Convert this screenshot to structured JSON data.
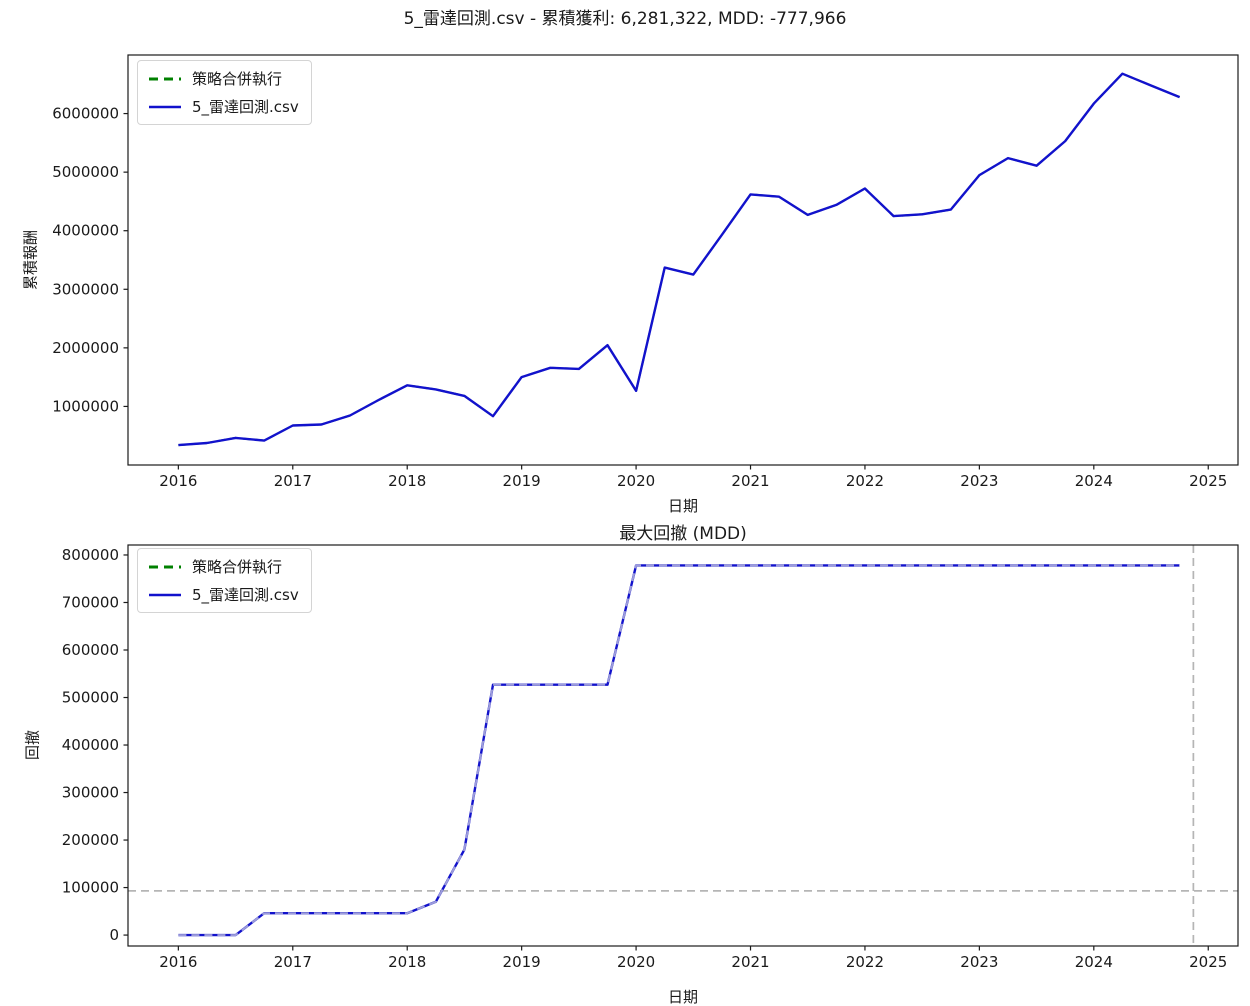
{
  "figure": {
    "background": "#ffffff",
    "suptitle": "5_雷達回測.csv - 累積獲利: 6,281,322, MDD: -777,966",
    "cumulative_profit": "6,281,322",
    "mdd": "-777,966"
  },
  "legend": {
    "items": [
      {
        "label": "策略合併執行",
        "color": "#008000",
        "style": "dashed"
      },
      {
        "label": "5_雷達回測.csv",
        "color": "#1212cc",
        "style": "solid"
      }
    ]
  },
  "chart_data": [
    {
      "type": "line",
      "title": "5_雷達回測.csv - 累積獲利: 6,281,322, MDD: -777,966",
      "xlabel": "日期",
      "ylabel": "累積報酬",
      "grid": false,
      "legend_position": "upper-left",
      "xlim": [
        2015.56,
        2025.26
      ],
      "ylim": [
        0,
        7000000
      ],
      "xticks": [
        2016,
        2017,
        2018,
        2019,
        2020,
        2021,
        2022,
        2023,
        2024,
        2025
      ],
      "yticks": [
        1000000,
        2000000,
        3000000,
        4000000,
        5000000,
        6000000
      ],
      "x": [
        2016.0,
        2016.25,
        2016.5,
        2016.75,
        2017.0,
        2017.25,
        2017.5,
        2017.75,
        2018.0,
        2018.25,
        2018.5,
        2018.75,
        2019.0,
        2019.25,
        2019.5,
        2019.75,
        2020.0,
        2020.25,
        2020.5,
        2020.75,
        2021.0,
        2021.25,
        2021.5,
        2021.75,
        2022.0,
        2022.25,
        2022.5,
        2022.75,
        2023.0,
        2023.25,
        2023.5,
        2023.75,
        2024.0,
        2024.25,
        2024.5,
        2024.75
      ],
      "series": [
        {
          "name": "策略合併執行",
          "color": "#008000",
          "dash": true,
          "width": 2.0,
          "y": [
            340000,
            375000,
            462000,
            416000,
            675000,
            692000,
            845000,
            1110000,
            1360000,
            1290000,
            1180000,
            833000,
            1500000,
            1660000,
            1640000,
            2045000,
            1267034,
            3370000,
            3250000,
            3930000,
            4620000,
            4580000,
            4270000,
            4440000,
            4720000,
            4250000,
            4280000,
            4360000,
            4950000,
            5240000,
            5110000,
            5530000,
            6170000,
            6680000,
            6480000,
            6281322
          ]
        },
        {
          "name": "5_雷達回測.csv",
          "color": "#1212cc",
          "dash": false,
          "width": 2.4,
          "y": [
            340000,
            375000,
            462000,
            416000,
            675000,
            692000,
            845000,
            1110000,
            1360000,
            1290000,
            1180000,
            833000,
            1500000,
            1660000,
            1640000,
            2045000,
            1267034,
            3370000,
            3250000,
            3930000,
            4620000,
            4580000,
            4270000,
            4440000,
            4720000,
            4250000,
            4280000,
            4360000,
            4950000,
            5240000,
            5110000,
            5530000,
            6170000,
            6680000,
            6480000,
            6281322
          ]
        }
      ]
    },
    {
      "type": "line",
      "title": "最大回撤 (MDD)",
      "xlabel": "日期",
      "ylabel": "回撤",
      "grid": false,
      "legend_position": "upper-left",
      "xlim": [
        2015.56,
        2025.26
      ],
      "ylim": [
        -23000,
        821000
      ],
      "xticks": [
        2016,
        2017,
        2018,
        2019,
        2020,
        2021,
        2022,
        2023,
        2024,
        2025
      ],
      "yticks": [
        0,
        100000,
        200000,
        300000,
        400000,
        500000,
        600000,
        700000,
        800000
      ],
      "x": [
        2016.0,
        2016.25,
        2016.5,
        2016.75,
        2017.0,
        2017.25,
        2017.5,
        2017.75,
        2018.0,
        2018.25,
        2018.5,
        2018.75,
        2019.0,
        2019.25,
        2019.5,
        2019.75,
        2020.0,
        2020.25,
        2020.5,
        2020.75,
        2021.0,
        2021.25,
        2021.5,
        2021.75,
        2022.0,
        2022.25,
        2022.5,
        2022.75,
        2023.0,
        2023.25,
        2023.5,
        2023.75,
        2024.0,
        2024.25,
        2024.5,
        2024.75
      ],
      "series": [
        {
          "name": "5_雷達回測.csv",
          "color": "#1212cc",
          "dash": false,
          "width": 2.4,
          "y": [
            0,
            0,
            0,
            46000,
            46000,
            46000,
            46000,
            46000,
            46000,
            70000,
            180000,
            527000,
            527000,
            527000,
            527000,
            527000,
            777966,
            777966,
            777966,
            777966,
            777966,
            777966,
            777966,
            777966,
            777966,
            777966,
            777966,
            777966,
            777966,
            777966,
            777966,
            777966,
            777966,
            777966,
            777966,
            777966
          ]
        },
        {
          "name": "策略合併執行",
          "color": "#9d9dda",
          "dash": true,
          "width": 2.0,
          "y": [
            0,
            0,
            0,
            46000,
            46000,
            46000,
            46000,
            46000,
            46000,
            70000,
            180000,
            527000,
            527000,
            527000,
            527000,
            527000,
            777966,
            777966,
            777966,
            777966,
            777966,
            777966,
            777966,
            777966,
            777966,
            777966,
            777966,
            777966,
            777966,
            777966,
            777966,
            777966,
            777966,
            777966,
            777966,
            777966
          ]
        }
      ],
      "hline": {
        "value": 93000,
        "color": "#b5b5b5",
        "style": "dashed"
      },
      "vline": {
        "x": 2024.87,
        "color": "#b5b5b5",
        "style": "dashed"
      }
    }
  ]
}
